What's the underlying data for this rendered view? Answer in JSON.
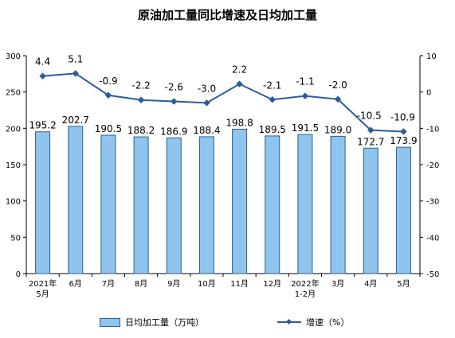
{
  "title": "原油加工量同比增速及日均加工量",
  "chart_data": {
    "type": "bar+line",
    "title": "原油加工量同比增速及日均加工量",
    "categories": [
      "2021年\n5月",
      "6月",
      "7月",
      "8月",
      "9月",
      "10月",
      "11月",
      "12月",
      "2022年\n1-2月",
      "3月",
      "4月",
      "5月"
    ],
    "series": [
      {
        "name": "日均加工量（万吨）",
        "type": "bar",
        "axis": "left",
        "values": [
          195.2,
          202.7,
          190.5,
          188.2,
          186.9,
          188.4,
          198.8,
          189.5,
          191.5,
          189.0,
          172.7,
          173.9
        ],
        "labels": [
          "195.2",
          "202.7",
          "190.5",
          "188.2",
          "186.9",
          "188.4",
          "198.8",
          "189.5",
          "191.5",
          "189.0",
          "172.7",
          "173.9"
        ]
      },
      {
        "name": "增速（%）",
        "type": "line",
        "axis": "right",
        "values": [
          4.4,
          5.1,
          -0.9,
          -2.2,
          -2.6,
          -3.0,
          2.2,
          -2.1,
          -1.1,
          -2.0,
          -10.5,
          -10.9
        ],
        "labels": [
          "4.4",
          "5.1",
          "-0.9",
          "-2.2",
          "-2.6",
          "-3.0",
          "2.2",
          "-2.1",
          "-1.1",
          "-2.0",
          "-10.5",
          "-10.9"
        ]
      }
    ],
    "y_left": {
      "min": 0,
      "max": 300,
      "ticks": [
        "0",
        "50",
        "100",
        "150",
        "200",
        "250",
        "300"
      ]
    },
    "y_right": {
      "min": -50,
      "max": 10,
      "ticks": [
        "-50",
        "-40",
        "-30",
        "-20",
        "-10",
        "0",
        "10"
      ]
    },
    "grid": false,
    "legend_position": "bottom",
    "colors": {
      "bar_fill": "#8fc4ef",
      "bar_stroke": "#2d5f8c",
      "line": "#2b5d9a"
    }
  },
  "legend": {
    "bar_label": "日均加工量（万吨）",
    "line_label": "增速（%）"
  }
}
